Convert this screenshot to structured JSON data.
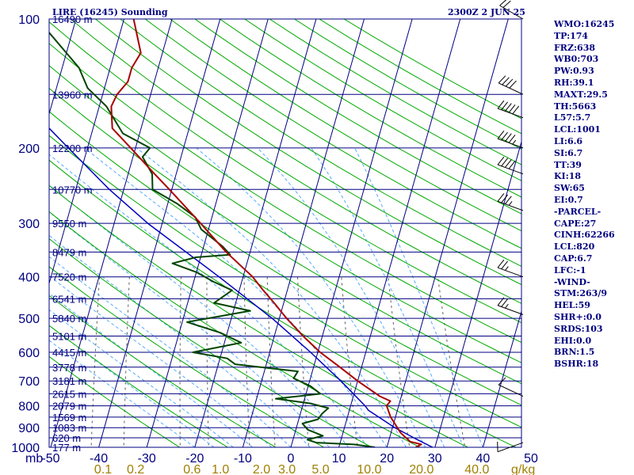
{
  "header": {
    "station": "LIRE (16245) Sounding",
    "time": "2300Z  2 JUN 25"
  },
  "indices": [
    "WMO:16245",
    "TP:174",
    "FRZ:638",
    "WB0:703",
    "PW:0.93",
    "RH:39.1",
    "MAXT:29.5",
    "TH:5663",
    "L57:5.7",
    "LCL:1001",
    "LI:6.6",
    "SI:6.7",
    "TT:39",
    "KI:18",
    "SW:65",
    "EI:0.7",
    "-PARCEL-",
    "CAPE:27",
    "CINH:62266",
    "LCL:820",
    "CAP:6.7",
    "LFC:-1",
    "-WIND-",
    "STM:263/9",
    "HEL:59",
    "SHR+:0.0",
    "SRDS:103",
    "EHI:0.0",
    "BRN:1.5",
    "BSHR:18"
  ],
  "colors": {
    "isobar": "#000080",
    "isotherm": "#000080",
    "dry_adiabat": "#00aa00",
    "moist_adiabat": "#55aaff",
    "mixing_ratio": "#606060",
    "temperature": "#aa0000",
    "dewpoint": "#004400",
    "parcel": "#0000c0",
    "wind_barb": "#000000"
  },
  "chart_data": {
    "type": "line",
    "chart_kind": "skew-T log-P",
    "y_axis": {
      "unit": "mb",
      "scale": "log",
      "range": [
        1000,
        100
      ]
    },
    "x_axis": {
      "unit": "C",
      "range": [
        -50,
        50
      ]
    },
    "pressure_levels": [
      100,
      200,
      300,
      400,
      500,
      600,
      700,
      800,
      900,
      1000
    ],
    "height_levels": [
      {
        "p": 100,
        "label": "16490 m"
      },
      {
        "p": 150,
        "label": "13960 m"
      },
      {
        "p": 200,
        "label": "12200 m"
      },
      {
        "p": 250,
        "label": "10770 m"
      },
      {
        "p": 300,
        "label": "9550 m"
      },
      {
        "p": 350,
        "label": "8479 m"
      },
      {
        "p": 400,
        "label": "7520 m"
      },
      {
        "p": 450,
        "label": "6541 m"
      },
      {
        "p": 500,
        "label": "5840 m"
      },
      {
        "p": 550,
        "label": "5101 m"
      },
      {
        "p": 600,
        "label": "4415 m"
      },
      {
        "p": 650,
        "label": "3778 m"
      },
      {
        "p": 700,
        "label": "3181 m"
      },
      {
        "p": 750,
        "label": "2615 m"
      },
      {
        "p": 800,
        "label": "2079 m"
      },
      {
        "p": 850,
        "label": "1569 m"
      },
      {
        "p": 900,
        "label": "1083 m"
      },
      {
        "p": 950,
        "label": "620 m"
      },
      {
        "p": 1000,
        "label": "177 m"
      }
    ],
    "temperature_ticks": [
      "-50",
      "-40",
      "-30",
      "-20",
      "-10",
      "0",
      "10",
      "20",
      "30",
      "40",
      "50"
    ],
    "mixing_ratio_ticks": [
      "0.1",
      "0.2",
      "0.6",
      "1.0",
      "2.0",
      "3.0",
      "5.0",
      "10.0",
      "20.0",
      "40.0"
    ],
    "mixing_ratio_unit": "g/kg",
    "temperature": [
      {
        "p": 1000,
        "t": 26.0
      },
      {
        "p": 985,
        "t": 27.0
      },
      {
        "p": 970,
        "t": 24.5
      },
      {
        "p": 925,
        "t": 22.0
      },
      {
        "p": 850,
        "t": 19.0
      },
      {
        "p": 800,
        "t": 17.5
      },
      {
        "p": 780,
        "t": 18.0
      },
      {
        "p": 760,
        "t": 15.5
      },
      {
        "p": 700,
        "t": 10.0
      },
      {
        "p": 650,
        "t": 5.5
      },
      {
        "p": 600,
        "t": 0.5
      },
      {
        "p": 550,
        "t": -4.0
      },
      {
        "p": 500,
        "t": -8.5
      },
      {
        "p": 460,
        "t": -12.0
      },
      {
        "p": 430,
        "t": -15.0
      },
      {
        "p": 400,
        "t": -18.0
      },
      {
        "p": 350,
        "t": -25.0
      },
      {
        "p": 300,
        "t": -32.0
      },
      {
        "p": 250,
        "t": -40.5
      },
      {
        "p": 230,
        "t": -44.5
      },
      {
        "p": 200,
        "t": -51.0
      },
      {
        "p": 180,
        "t": -56.0
      },
      {
        "p": 160,
        "t": -57.5
      },
      {
        "p": 150,
        "t": -57.0
      },
      {
        "p": 140,
        "t": -55.5
      },
      {
        "p": 130,
        "t": -55.5
      },
      {
        "p": 120,
        "t": -54.5
      },
      {
        "p": 100,
        "t": -58.0
      }
    ],
    "dewpoint": [
      {
        "p": 1000,
        "t": 17.5
      },
      {
        "p": 985,
        "t": 13.0
      },
      {
        "p": 975,
        "t": 5.0
      },
      {
        "p": 960,
        "t": 3.0
      },
      {
        "p": 940,
        "t": 6.0
      },
      {
        "p": 910,
        "t": 2.5
      },
      {
        "p": 880,
        "t": 1.0
      },
      {
        "p": 860,
        "t": 4.0
      },
      {
        "p": 835,
        "t": 4.5
      },
      {
        "p": 810,
        "t": 5.5
      },
      {
        "p": 790,
        "t": 1.5
      },
      {
        "p": 770,
        "t": -6.0
      },
      {
        "p": 750,
        "t": 3.0
      },
      {
        "p": 720,
        "t": 0.5
      },
      {
        "p": 690,
        "t": -3.5
      },
      {
        "p": 665,
        "t": -3.0
      },
      {
        "p": 640,
        "t": -16.5
      },
      {
        "p": 620,
        "t": -18.5
      },
      {
        "p": 600,
        "t": -26.0
      },
      {
        "p": 570,
        "t": -16.5
      },
      {
        "p": 540,
        "t": -21.5
      },
      {
        "p": 510,
        "t": -29.0
      },
      {
        "p": 480,
        "t": -16.5
      },
      {
        "p": 460,
        "t": -24.5
      },
      {
        "p": 430,
        "t": -21.5
      },
      {
        "p": 410,
        "t": -26.0
      },
      {
        "p": 390,
        "t": -30.0
      },
      {
        "p": 372,
        "t": -35.5
      },
      {
        "p": 360,
        "t": -31.0
      },
      {
        "p": 355,
        "t": -24.0
      },
      {
        "p": 340,
        "t": -26.0
      },
      {
        "p": 310,
        "t": -31.5
      },
      {
        "p": 290,
        "t": -33.5
      },
      {
        "p": 270,
        "t": -38.0
      },
      {
        "p": 250,
        "t": -44.0
      },
      {
        "p": 230,
        "t": -45.0
      },
      {
        "p": 210,
        "t": -48.0
      },
      {
        "p": 200,
        "t": -47.0
      },
      {
        "p": 185,
        "t": -53.5
      },
      {
        "p": 160,
        "t": -58.5
      },
      {
        "p": 145,
        "t": -63.5
      },
      {
        "p": 130,
        "t": -66.5
      },
      {
        "p": 100,
        "t": -78.0
      }
    ],
    "parcel": [
      {
        "p": 1000,
        "t": 29.5
      },
      {
        "p": 950,
        "t": 25.0
      },
      {
        "p": 900,
        "t": 20.5
      },
      {
        "p": 850,
        "t": 16.5
      },
      {
        "p": 820,
        "t": 14.0
      },
      {
        "p": 800,
        "t": 13.0
      },
      {
        "p": 700,
        "t": 6.5
      },
      {
        "p": 600,
        "t": -1.5
      },
      {
        "p": 500,
        "t": -11.5
      },
      {
        "p": 400,
        "t": -25.0
      },
      {
        "p": 300,
        "t": -43.0
      },
      {
        "p": 250,
        "t": -53.0
      },
      {
        "p": 200,
        "t": -64.0
      },
      {
        "p": 150,
        "t": -78.0
      },
      {
        "p": 115,
        "t": -90.0
      }
    ],
    "wind": [
      {
        "p": 975,
        "dir": 250,
        "spd": 10
      },
      {
        "p": 760,
        "dir": 295,
        "spd": 10
      },
      {
        "p": 490,
        "dir": 290,
        "spd": 25
      },
      {
        "p": 400,
        "dir": 290,
        "spd": 25
      },
      {
        "p": 280,
        "dir": 290,
        "spd": 35
      },
      {
        "p": 230,
        "dir": 290,
        "spd": 40
      },
      {
        "p": 200,
        "dir": 290,
        "spd": 45
      },
      {
        "p": 170,
        "dir": 290,
        "spd": 50
      },
      {
        "p": 150,
        "dir": 295,
        "spd": 40
      },
      {
        "p": 100,
        "dir": 300,
        "spd": 20
      }
    ]
  }
}
